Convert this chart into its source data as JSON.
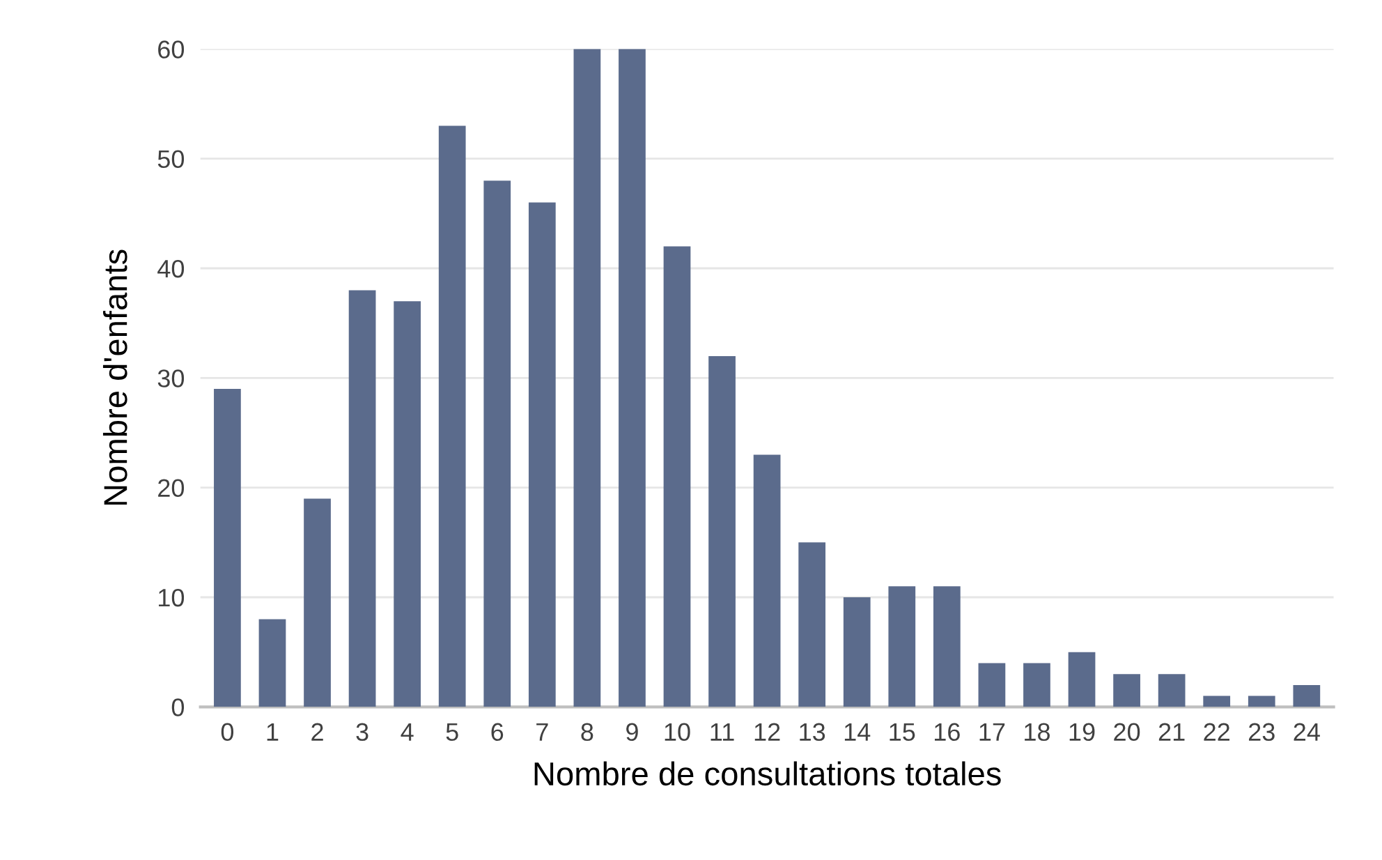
{
  "chart_data": {
    "type": "bar",
    "categories": [
      "0",
      "1",
      "2",
      "3",
      "4",
      "5",
      "6",
      "7",
      "8",
      "9",
      "10",
      "11",
      "12",
      "13",
      "14",
      "15",
      "16",
      "17",
      "18",
      "19",
      "20",
      "21",
      "22",
      "23",
      "24"
    ],
    "values": [
      29,
      8,
      19,
      38,
      37,
      53,
      48,
      46,
      60,
      60,
      42,
      32,
      23,
      15,
      10,
      11,
      11,
      4,
      4,
      5,
      3,
      3,
      1,
      1,
      2
    ],
    "color": "#5b6b8c",
    "xlabel": "Nombre de consultations totales",
    "ylabel": "Nombre d'enfants",
    "ylim": [
      0,
      60
    ],
    "yticks": [
      0,
      10,
      20,
      30,
      40,
      50,
      60
    ],
    "grid": "y"
  }
}
